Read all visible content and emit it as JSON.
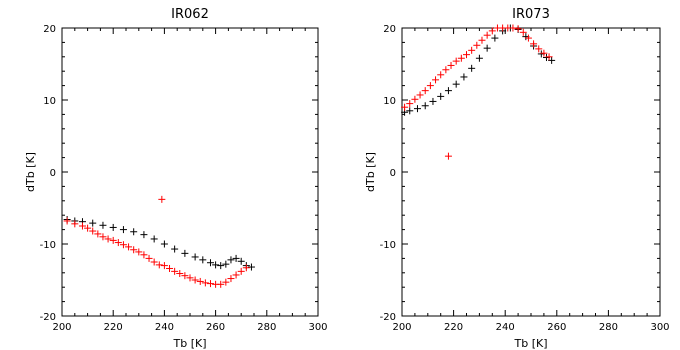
{
  "colors": {
    "series_black": "#000000",
    "series_red": "#ff0000"
  },
  "chart_data": [
    {
      "type": "scatter",
      "title": "IR062",
      "xlabel": "Tb [K]",
      "ylabel": "dTb [K]",
      "xlim": [
        200,
        300
      ],
      "ylim": [
        -20,
        20
      ],
      "xticks": [
        "200",
        "220",
        "240",
        "260",
        "280",
        "300"
      ],
      "yticks": [
        "-20",
        "-10",
        "0",
        "10",
        "20"
      ],
      "grid": false,
      "marker": "+",
      "series": [
        {
          "color": "#000000",
          "x": [
            202,
            205,
            208,
            212,
            216,
            220,
            224,
            228,
            232,
            236,
            240,
            244,
            248,
            252,
            255,
            258,
            260,
            262,
            264,
            266,
            268,
            270,
            272,
            274
          ],
          "y": [
            -6.6,
            -6.8,
            -6.9,
            -7.1,
            -7.4,
            -7.7,
            -8.0,
            -8.3,
            -8.7,
            -9.3,
            -10.0,
            -10.7,
            -11.3,
            -11.8,
            -12.2,
            -12.6,
            -12.9,
            -13.0,
            -12.8,
            -12.2,
            -12.0,
            -12.4,
            -13.0,
            -13.2
          ]
        },
        {
          "color": "#ff0000",
          "x": [
            202,
            205,
            208,
            210,
            212,
            214,
            216,
            218,
            220,
            222,
            224,
            226,
            228,
            230,
            232,
            234,
            236,
            238,
            239,
            240,
            242,
            244,
            246,
            248,
            250,
            252,
            254,
            256,
            258,
            260,
            262,
            264,
            266,
            268,
            270,
            272
          ],
          "y": [
            -6.8,
            -7.2,
            -7.5,
            -7.8,
            -8.2,
            -8.6,
            -9.0,
            -9.3,
            -9.5,
            -9.8,
            -10.1,
            -10.4,
            -10.8,
            -11.1,
            -11.5,
            -12.0,
            -12.5,
            -12.9,
            -3.8,
            -13.0,
            -13.4,
            -13.8,
            -14.1,
            -14.4,
            -14.7,
            -15.0,
            -15.2,
            -15.4,
            -15.5,
            -15.6,
            -15.6,
            -15.3,
            -14.8,
            -14.3,
            -13.8,
            -13.3
          ]
        }
      ]
    },
    {
      "type": "scatter",
      "title": "IR073",
      "xlabel": "Tb [K]",
      "ylabel": "dTb [K]",
      "xlim": [
        200,
        300
      ],
      "ylim": [
        -20,
        20
      ],
      "xticks": [
        "200",
        "220",
        "240",
        "260",
        "280",
        "300"
      ],
      "yticks": [
        "-20",
        "-10",
        "0",
        "10",
        "20"
      ],
      "grid": false,
      "marker": "+",
      "series": [
        {
          "color": "#000000",
          "x": [
            201,
            203,
            206,
            209,
            212,
            215,
            218,
            221,
            224,
            227,
            230,
            233,
            236,
            239,
            242,
            245,
            248,
            251,
            254,
            256,
            258
          ],
          "y": [
            8.3,
            8.5,
            8.8,
            9.2,
            9.8,
            10.5,
            11.3,
            12.2,
            13.2,
            14.4,
            15.8,
            17.2,
            18.6,
            19.6,
            20.0,
            19.8,
            18.8,
            17.5,
            16.4,
            15.9,
            15.5
          ]
        },
        {
          "color": "#ff0000",
          "x": [
            201,
            203,
            205,
            207,
            209,
            211,
            213,
            215,
            217,
            218,
            219,
            221,
            223,
            225,
            227,
            229,
            231,
            233,
            235,
            237,
            239,
            241,
            243,
            245,
            247,
            249,
            251,
            253,
            255,
            257
          ],
          "y": [
            9.0,
            9.5,
            10.1,
            10.7,
            11.3,
            12.0,
            12.8,
            13.5,
            14.2,
            2.2,
            14.8,
            15.4,
            15.8,
            16.3,
            16.9,
            17.6,
            18.3,
            19.0,
            19.6,
            20.0,
            20.0,
            20.0,
            20.0,
            19.9,
            19.4,
            18.6,
            17.8,
            17.1,
            16.5,
            16.0
          ]
        }
      ]
    }
  ]
}
